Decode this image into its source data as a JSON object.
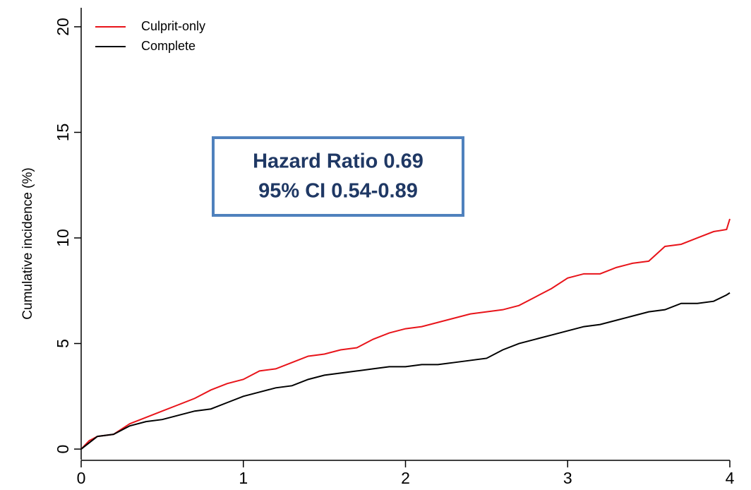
{
  "chart_data": {
    "type": "line",
    "ylabel": "Cumulative incidence (%)",
    "annotations": [
      "Hazard Ratio 0.69",
      "95% CI 0.54-0.89"
    ],
    "x": [
      0,
      0.05,
      0.1,
      0.2,
      0.3,
      0.4,
      0.5,
      0.6,
      0.7,
      0.8,
      0.9,
      1.0,
      1.1,
      1.2,
      1.3,
      1.4,
      1.5,
      1.6,
      1.7,
      1.8,
      1.9,
      2.0,
      2.1,
      2.2,
      2.3,
      2.4,
      2.5,
      2.6,
      2.7,
      2.8,
      2.9,
      3.0,
      3.1,
      3.2,
      3.3,
      3.4,
      3.5,
      3.6,
      3.7,
      3.8,
      3.9,
      3.98,
      4.0
    ],
    "series": [
      {
        "name": "Culprit-only",
        "color": "#e8141a",
        "values": [
          0,
          0.4,
          0.6,
          0.7,
          1.2,
          1.5,
          1.8,
          2.1,
          2.4,
          2.8,
          3.1,
          3.3,
          3.7,
          3.8,
          4.1,
          4.4,
          4.5,
          4.7,
          4.8,
          5.2,
          5.5,
          5.7,
          5.8,
          6.0,
          6.2,
          6.4,
          6.5,
          6.6,
          6.8,
          7.2,
          7.6,
          8.1,
          8.3,
          8.3,
          8.6,
          8.8,
          8.9,
          9.6,
          9.7,
          10.0,
          10.3,
          10.4,
          10.9
        ]
      },
      {
        "name": "Complete",
        "color": "#000000",
        "values": [
          0,
          0.3,
          0.6,
          0.7,
          1.1,
          1.3,
          1.4,
          1.6,
          1.8,
          1.9,
          2.2,
          2.5,
          2.7,
          2.9,
          3.0,
          3.3,
          3.5,
          3.6,
          3.7,
          3.8,
          3.9,
          3.9,
          4.0,
          4.0,
          4.1,
          4.2,
          4.3,
          4.7,
          5.0,
          5.2,
          5.4,
          5.6,
          5.8,
          5.9,
          6.1,
          6.3,
          6.5,
          6.6,
          6.9,
          6.9,
          7.0,
          7.3,
          7.4
        ]
      }
    ],
    "xlim": [
      0,
      4
    ],
    "xticks": [
      0,
      1,
      2,
      3,
      4
    ],
    "ylim": [
      -0.5,
      20.7
    ],
    "yticks": [
      0,
      5,
      10,
      15,
      20
    ],
    "legend": "top-left"
  }
}
